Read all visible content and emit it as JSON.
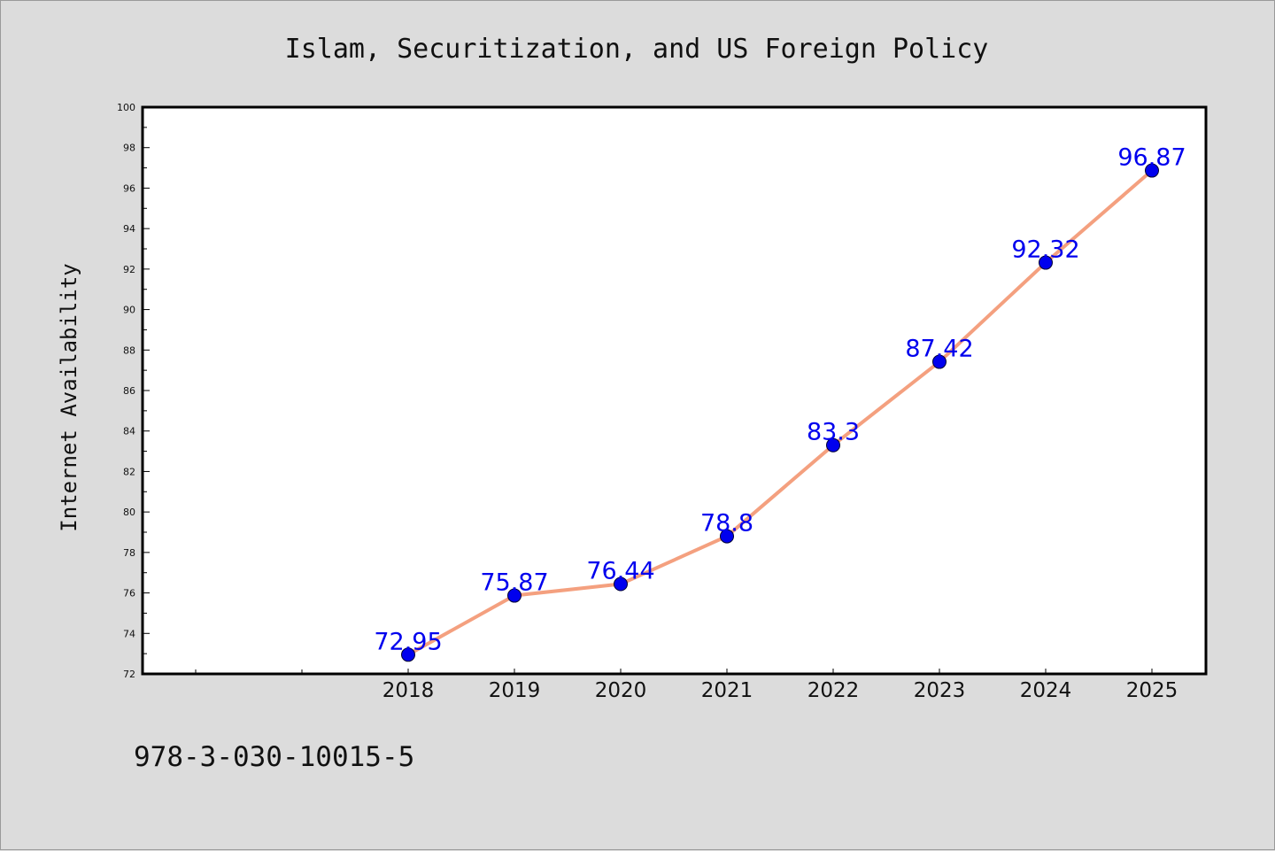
{
  "chart_data": {
    "type": "line",
    "title": "Islam, Securitization, and US Foreign Policy",
    "xlabel": "",
    "ylabel": "Internet Availability",
    "categories": [
      "2018",
      "2019",
      "2020",
      "2021",
      "2022",
      "2023",
      "2024",
      "2025"
    ],
    "series": [
      {
        "values": [
          72.95,
          75.87,
          76.44,
          78.8,
          83.3,
          87.42,
          92.32,
          96.87
        ],
        "labels": [
          "72.95",
          "75.87",
          "76.44",
          "78.8",
          "83.3",
          "87.42",
          "92.32",
          "96.87"
        ],
        "color": "#f4a07f",
        "marker_color": "#0000ee"
      }
    ],
    "ylim": [
      72,
      100
    ],
    "yticks": [
      72,
      74,
      76,
      78,
      80,
      82,
      84,
      86,
      88,
      90,
      92,
      94,
      96,
      98,
      100
    ],
    "ytick_labels": [
      "72",
      "74",
      "76",
      "78",
      "80",
      "82",
      "84",
      "86",
      "88",
      "90",
      "92",
      "94",
      "96",
      "98",
      "100"
    ],
    "grid": false,
    "legend": "none"
  },
  "footer_text": "978-3-030-10015-5"
}
